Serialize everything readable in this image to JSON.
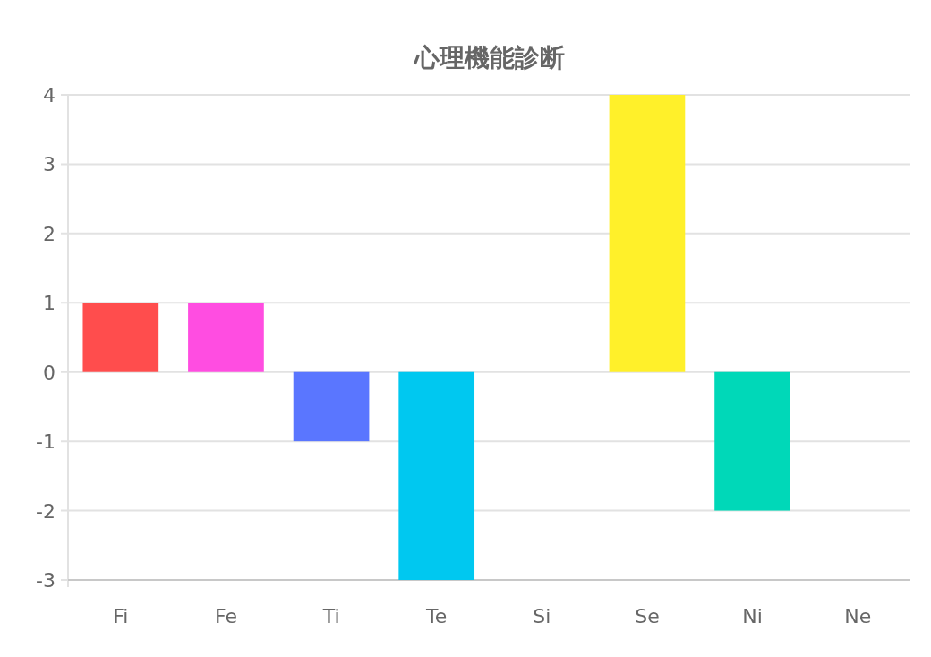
{
  "chart_data": {
    "type": "bar",
    "title": "心理機能診断",
    "categories": [
      "Fi",
      "Fe",
      "Ti",
      "Te",
      "Si",
      "Se",
      "Ni",
      "Ne"
    ],
    "values": [
      1,
      1,
      -1,
      -3,
      0,
      4,
      -2,
      0
    ],
    "colors": [
      "#ff4d4d",
      "#ff4de1",
      "#5a76ff",
      "#00c8f0",
      "#ff9f40",
      "#fff02a",
      "#00d8b8",
      "#9966ff"
    ],
    "ylim": [
      -3,
      4
    ],
    "yticks": [
      -3,
      -2,
      -1,
      0,
      1,
      2,
      3,
      4
    ],
    "grid": "y"
  }
}
